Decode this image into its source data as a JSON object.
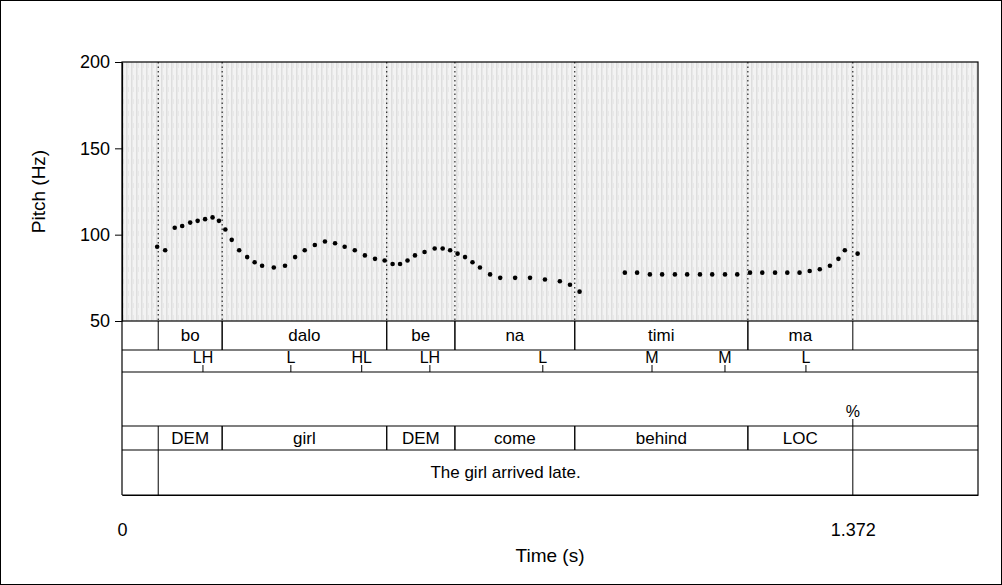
{
  "chart_data": {
    "type": "scatter",
    "marker": "circle",
    "color": "#000000",
    "y_label": "Pitch (Hz)",
    "x_label": "Time (s)",
    "xlim": [
      0,
      1.607
    ],
    "xticks": [
      0,
      1.372
    ],
    "ylim": [
      50,
      200
    ],
    "yticks": [
      50,
      100,
      150,
      200
    ],
    "x": [
      0.066,
      0.081,
      0.099,
      0.113,
      0.128,
      0.142,
      0.156,
      0.17,
      0.182,
      0.194,
      0.206,
      0.22,
      0.235,
      0.249,
      0.263,
      0.285,
      0.306,
      0.325,
      0.343,
      0.362,
      0.381,
      0.4,
      0.418,
      0.437,
      0.456,
      0.475,
      0.493,
      0.508,
      0.522,
      0.536,
      0.55,
      0.568,
      0.587,
      0.602,
      0.616,
      0.63,
      0.644,
      0.658,
      0.672,
      0.691,
      0.71,
      0.738,
      0.766,
      0.794,
      0.822,
      0.841,
      0.859,
      0.944,
      0.967,
      0.991,
      1.014,
      1.038,
      1.061,
      1.085,
      1.108,
      1.132,
      1.155,
      1.179,
      1.202,
      1.226,
      1.249,
      1.272,
      1.291,
      1.31,
      1.329,
      1.345,
      1.357,
      1.381
    ],
    "values": [
      93,
      91,
      104,
      105,
      107,
      108,
      109,
      110,
      108,
      103,
      97,
      91,
      87,
      84,
      82,
      81,
      82,
      87,
      91,
      94,
      96,
      95,
      93,
      91,
      88,
      86,
      85,
      83,
      83,
      85,
      88,
      90,
      92,
      92,
      91,
      89,
      87,
      84,
      81,
      77,
      75,
      75,
      75,
      74,
      73,
      71,
      67,
      78,
      78,
      77,
      77,
      77,
      77,
      77,
      77,
      77,
      77,
      78,
      78,
      78,
      78,
      78,
      79,
      80,
      82,
      86,
      91,
      89
    ],
    "tiers": [
      {
        "intervals": [
          {
            "start": 0.068,
            "end": 0.188,
            "label": "bo"
          },
          {
            "start": 0.188,
            "end": 0.497,
            "label": "dalo"
          },
          {
            "start": 0.497,
            "end": 0.625,
            "label": "be"
          },
          {
            "start": 0.625,
            "end": 0.85,
            "label": "na"
          },
          {
            "start": 0.85,
            "end": 1.175,
            "label": "timi"
          },
          {
            "start": 1.175,
            "end": 1.372,
            "label": "ma"
          }
        ]
      },
      {
        "points": [
          {
            "time": 0.152,
            "label": "LH"
          },
          {
            "time": 0.317,
            "label": "L"
          },
          {
            "time": 0.45,
            "label": "HL"
          },
          {
            "time": 0.578,
            "label": "LH"
          },
          {
            "time": 0.79,
            "label": "L"
          },
          {
            "time": 0.995,
            "label": "M"
          },
          {
            "time": 1.132,
            "label": "M"
          },
          {
            "time": 1.284,
            "label": "L"
          }
        ]
      },
      {
        "points": [
          {
            "time": 1.372,
            "label": "%"
          }
        ]
      },
      {
        "intervals": [
          {
            "start": 0.068,
            "end": 0.188,
            "label": "DEM"
          },
          {
            "start": 0.188,
            "end": 0.497,
            "label": "girl"
          },
          {
            "start": 0.497,
            "end": 0.625,
            "label": "DEM"
          },
          {
            "start": 0.625,
            "end": 0.85,
            "label": "come"
          },
          {
            "start": 0.85,
            "end": 1.175,
            "label": "behind"
          },
          {
            "start": 1.175,
            "end": 1.372,
            "label": "LOC"
          }
        ]
      },
      {
        "intervals": [
          {
            "start": 0.068,
            "end": 1.372,
            "label": "The girl arrived late."
          }
        ]
      }
    ]
  }
}
